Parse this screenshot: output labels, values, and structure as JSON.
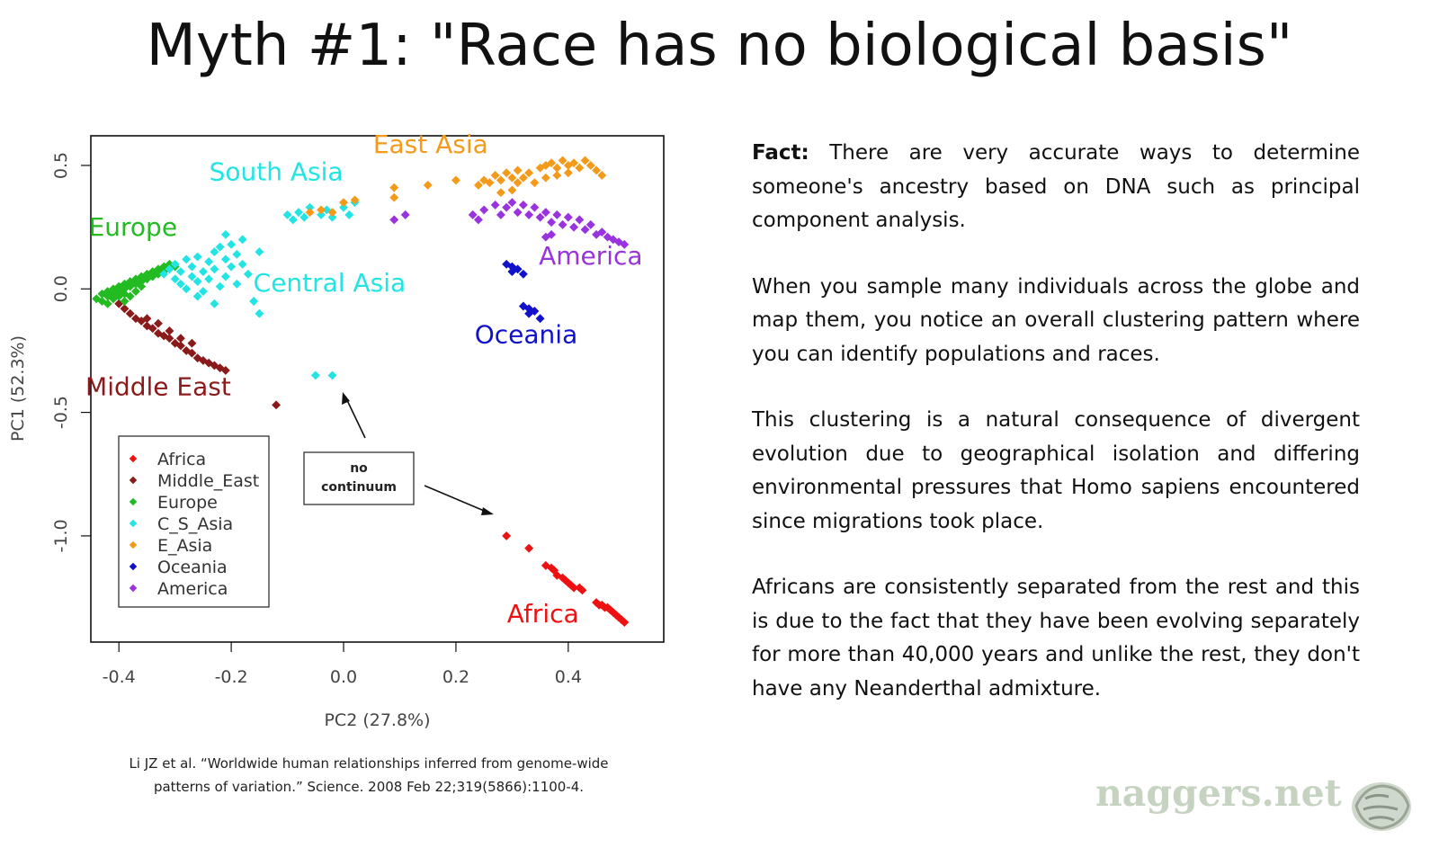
{
  "title": "Myth #1: \"Race has no biological basis\"",
  "chart_data": {
    "type": "scatter",
    "xlabel": "PC2 (27.8%)",
    "ylabel": "PC1 (52.3%)",
    "xlim": [
      -0.45,
      0.57
    ],
    "ylim": [
      -1.43,
      0.62
    ],
    "x_ticks": [
      -0.4,
      -0.2,
      0.0,
      0.2,
      0.4
    ],
    "y_ticks": [
      0.5,
      0.0,
      -0.5,
      -1.0
    ],
    "x_tick_labels": [
      "-0.4",
      "-0.2",
      "0.0",
      "0.2",
      "0.4"
    ],
    "y_tick_labels": [
      "0.5",
      "0.0",
      "-0.5",
      "-1.0"
    ],
    "grid": false,
    "legend_position": "bottom-left",
    "series": [
      {
        "name": "Africa",
        "color": "#ee1111",
        "points": [
          [
            0.29,
            -1.0
          ],
          [
            0.33,
            -1.05
          ],
          [
            0.36,
            -1.12
          ],
          [
            0.37,
            -1.13
          ],
          [
            0.375,
            -1.14
          ],
          [
            0.38,
            -1.16
          ],
          [
            0.39,
            -1.17
          ],
          [
            0.395,
            -1.18
          ],
          [
            0.4,
            -1.19
          ],
          [
            0.405,
            -1.2
          ],
          [
            0.41,
            -1.21
          ],
          [
            0.42,
            -1.21
          ],
          [
            0.425,
            -1.22
          ],
          [
            0.45,
            -1.27
          ],
          [
            0.455,
            -1.28
          ],
          [
            0.46,
            -1.28
          ],
          [
            0.465,
            -1.29
          ],
          [
            0.47,
            -1.29
          ],
          [
            0.475,
            -1.3
          ],
          [
            0.48,
            -1.31
          ],
          [
            0.485,
            -1.32
          ],
          [
            0.49,
            -1.33
          ],
          [
            0.495,
            -1.34
          ],
          [
            0.5,
            -1.35
          ]
        ]
      },
      {
        "name": "Middle_East",
        "color": "#8b1a1a",
        "points": [
          [
            -0.4,
            -0.06
          ],
          [
            -0.39,
            -0.08
          ],
          [
            -0.38,
            -0.1
          ],
          [
            -0.37,
            -0.12
          ],
          [
            -0.36,
            -0.13
          ],
          [
            -0.35,
            -0.15
          ],
          [
            -0.34,
            -0.16
          ],
          [
            -0.33,
            -0.18
          ],
          [
            -0.32,
            -0.19
          ],
          [
            -0.31,
            -0.2
          ],
          [
            -0.3,
            -0.22
          ],
          [
            -0.29,
            -0.23
          ],
          [
            -0.28,
            -0.25
          ],
          [
            -0.27,
            -0.26
          ],
          [
            -0.26,
            -0.28
          ],
          [
            -0.25,
            -0.29
          ],
          [
            -0.24,
            -0.3
          ],
          [
            -0.23,
            -0.31
          ],
          [
            -0.22,
            -0.32
          ],
          [
            -0.21,
            -0.33
          ],
          [
            -0.35,
            -0.12
          ],
          [
            -0.33,
            -0.14
          ],
          [
            -0.31,
            -0.17
          ],
          [
            -0.29,
            -0.2
          ],
          [
            -0.27,
            -0.22
          ],
          [
            -0.12,
            -0.47
          ]
        ]
      },
      {
        "name": "Europe",
        "color": "#22bb22",
        "points": [
          [
            -0.44,
            -0.04
          ],
          [
            -0.43,
            -0.02
          ],
          [
            -0.43,
            -0.05
          ],
          [
            -0.42,
            -0.01
          ],
          [
            -0.42,
            -0.03
          ],
          [
            -0.42,
            -0.06
          ],
          [
            -0.41,
            0.0
          ],
          [
            -0.41,
            -0.02
          ],
          [
            -0.41,
            -0.04
          ],
          [
            -0.4,
            0.01
          ],
          [
            -0.4,
            -0.01
          ],
          [
            -0.4,
            -0.03
          ],
          [
            -0.39,
            0.02
          ],
          [
            -0.39,
            0.0
          ],
          [
            -0.39,
            -0.02
          ],
          [
            -0.38,
            0.03
          ],
          [
            -0.38,
            0.01
          ],
          [
            -0.37,
            0.04
          ],
          [
            -0.37,
            0.02
          ],
          [
            -0.36,
            0.05
          ],
          [
            -0.36,
            0.03
          ],
          [
            -0.35,
            0.06
          ],
          [
            -0.35,
            0.04
          ],
          [
            -0.34,
            0.07
          ],
          [
            -0.34,
            0.05
          ],
          [
            -0.33,
            0.08
          ],
          [
            -0.33,
            0.06
          ],
          [
            -0.32,
            0.09
          ],
          [
            -0.32,
            0.07
          ],
          [
            -0.31,
            0.1
          ],
          [
            -0.3,
            0.09
          ],
          [
            -0.36,
            0.01
          ],
          [
            -0.37,
            -0.01
          ],
          [
            -0.38,
            -0.03
          ],
          [
            -0.39,
            -0.05
          ]
        ]
      },
      {
        "name": "C_S_Asia",
        "color": "#22e4e4",
        "points": [
          [
            -0.32,
            0.06
          ],
          [
            -0.31,
            0.08
          ],
          [
            -0.3,
            0.04
          ],
          [
            -0.3,
            0.1
          ],
          [
            -0.29,
            0.02
          ],
          [
            -0.29,
            0.07
          ],
          [
            -0.28,
            0.12
          ],
          [
            -0.28,
            0.0
          ],
          [
            -0.27,
            0.05
          ],
          [
            -0.27,
            0.09
          ],
          [
            -0.26,
            0.03
          ],
          [
            -0.26,
            0.13
          ],
          [
            -0.25,
            0.07
          ],
          [
            -0.25,
            -0.01
          ],
          [
            -0.24,
            0.11
          ],
          [
            -0.24,
            0.04
          ],
          [
            -0.23,
            0.15
          ],
          [
            -0.23,
            0.08
          ],
          [
            -0.22,
            0.01
          ],
          [
            -0.22,
            0.17
          ],
          [
            -0.21,
            0.12
          ],
          [
            -0.21,
            0.05
          ],
          [
            -0.2,
            0.18
          ],
          [
            -0.2,
            0.09
          ],
          [
            -0.19,
            0.14
          ],
          [
            -0.19,
            0.02
          ],
          [
            -0.18,
            0.1
          ],
          [
            -0.18,
            0.2
          ],
          [
            -0.17,
            0.06
          ],
          [
            -0.16,
            -0.05
          ],
          [
            -0.15,
            -0.1
          ],
          [
            -0.15,
            0.15
          ],
          [
            -0.26,
            -0.03
          ],
          [
            -0.23,
            -0.06
          ],
          [
            -0.21,
            0.22
          ],
          [
            -0.1,
            0.3
          ],
          [
            -0.09,
            0.28
          ],
          [
            -0.08,
            0.31
          ],
          [
            -0.07,
            0.29
          ],
          [
            -0.06,
            0.33
          ],
          [
            -0.04,
            0.3
          ],
          [
            -0.03,
            0.32
          ],
          [
            -0.02,
            0.29
          ],
          [
            0.0,
            0.33
          ],
          [
            0.01,
            0.3
          ],
          [
            0.02,
            0.35
          ],
          [
            -0.05,
            -0.35
          ],
          [
            -0.02,
            -0.35
          ]
        ]
      },
      {
        "name": "E_Asia",
        "color": "#f49a1a",
        "points": [
          [
            -0.06,
            0.31
          ],
          [
            -0.04,
            0.32
          ],
          [
            -0.02,
            0.31
          ],
          [
            0.0,
            0.35
          ],
          [
            0.02,
            0.36
          ],
          [
            0.09,
            0.41
          ],
          [
            0.09,
            0.37
          ],
          [
            0.15,
            0.42
          ],
          [
            0.2,
            0.44
          ],
          [
            0.24,
            0.42
          ],
          [
            0.25,
            0.44
          ],
          [
            0.26,
            0.43
          ],
          [
            0.27,
            0.46
          ],
          [
            0.28,
            0.44
          ],
          [
            0.29,
            0.47
          ],
          [
            0.3,
            0.45
          ],
          [
            0.31,
            0.48
          ],
          [
            0.32,
            0.45
          ],
          [
            0.33,
            0.47
          ],
          [
            0.34,
            0.43
          ],
          [
            0.35,
            0.49
          ],
          [
            0.36,
            0.5
          ],
          [
            0.37,
            0.51
          ],
          [
            0.38,
            0.49
          ],
          [
            0.39,
            0.52
          ],
          [
            0.4,
            0.5
          ],
          [
            0.41,
            0.51
          ],
          [
            0.42,
            0.49
          ],
          [
            0.43,
            0.52
          ],
          [
            0.44,
            0.5
          ],
          [
            0.45,
            0.48
          ],
          [
            0.46,
            0.46
          ],
          [
            0.3,
            0.4
          ],
          [
            0.28,
            0.39
          ],
          [
            0.31,
            0.43
          ],
          [
            0.38,
            0.46
          ],
          [
            0.4,
            0.47
          ],
          [
            0.36,
            0.45
          ]
        ]
      },
      {
        "name": "Oceania",
        "color": "#1111cc",
        "points": [
          [
            0.29,
            0.1
          ],
          [
            0.3,
            0.09
          ],
          [
            0.3,
            0.07
          ],
          [
            0.31,
            0.08
          ],
          [
            0.32,
            0.06
          ],
          [
            0.32,
            -0.07
          ],
          [
            0.33,
            -0.08
          ],
          [
            0.33,
            -0.1
          ],
          [
            0.34,
            -0.09
          ],
          [
            0.35,
            -0.12
          ]
        ]
      },
      {
        "name": "America",
        "color": "#9933dd",
        "points": [
          [
            0.09,
            0.28
          ],
          [
            0.11,
            0.3
          ],
          [
            0.23,
            0.3
          ],
          [
            0.24,
            0.28
          ],
          [
            0.25,
            0.32
          ],
          [
            0.27,
            0.34
          ],
          [
            0.28,
            0.3
          ],
          [
            0.29,
            0.33
          ],
          [
            0.3,
            0.35
          ],
          [
            0.31,
            0.31
          ],
          [
            0.32,
            0.34
          ],
          [
            0.33,
            0.3
          ],
          [
            0.34,
            0.33
          ],
          [
            0.35,
            0.29
          ],
          [
            0.36,
            0.31
          ],
          [
            0.37,
            0.27
          ],
          [
            0.38,
            0.3
          ],
          [
            0.39,
            0.26
          ],
          [
            0.4,
            0.29
          ],
          [
            0.41,
            0.25
          ],
          [
            0.42,
            0.28
          ],
          [
            0.43,
            0.24
          ],
          [
            0.44,
            0.26
          ],
          [
            0.45,
            0.22
          ],
          [
            0.46,
            0.23
          ],
          [
            0.47,
            0.21
          ],
          [
            0.48,
            0.2
          ],
          [
            0.49,
            0.19
          ],
          [
            0.5,
            0.18
          ],
          [
            0.37,
            0.22
          ],
          [
            0.36,
            0.21
          ]
        ]
      }
    ],
    "region_labels": [
      {
        "text": "East Asia",
        "color": "#f49a1a",
        "x": 0.155,
        "y": 0.55
      },
      {
        "text": "South Asia",
        "color": "#22e4e4",
        "x": -0.12,
        "y": 0.44
      },
      {
        "text": "Europe",
        "color": "#22bb22",
        "x": -0.375,
        "y": 0.215
      },
      {
        "text": "America",
        "color": "#9933dd",
        "x": 0.44,
        "y": 0.1
      },
      {
        "text": "Central Asia",
        "color": "#22e4e4",
        "x": -0.025,
        "y": -0.01
      },
      {
        "text": "Oceania",
        "color": "#1111cc",
        "x": 0.325,
        "y": -0.22
      },
      {
        "text": "Middle East",
        "color": "#8b1a1a",
        "x": -0.33,
        "y": -0.43
      },
      {
        "text": "Africa",
        "color": "#ee1111",
        "x": 0.355,
        "y": -1.35
      }
    ],
    "annotation": {
      "line1": "no",
      "line2": "continuum"
    }
  },
  "citation": {
    "line1": "Li JZ et al. “Worldwide human relationships inferred from genome-wide",
    "line2": "patterns of variation.” Science. 2008 Feb 22;319(5866):1100-4."
  },
  "text_panel": {
    "fact_label": "Fact:",
    "p1_rest": " There are very accurate ways to determine someone's ancestry based on DNA such as principal component analysis.",
    "p2": "When you sample many individuals across the globe and map them, you notice an overall clustering pattern where you can identify populations and races.",
    "p3": "This clustering is a natural consequence of divergent evolution due to geographical isolation and differing environmental pressures that Homo sapiens encountered since migrations took place.",
    "p4": "Africans are consistently separated from the rest and this is due to the fact that they have been evolving separately for more than 40,000 years and unlike the rest, they don't have any Neanderthal admixture."
  },
  "watermark": "naggers.net"
}
